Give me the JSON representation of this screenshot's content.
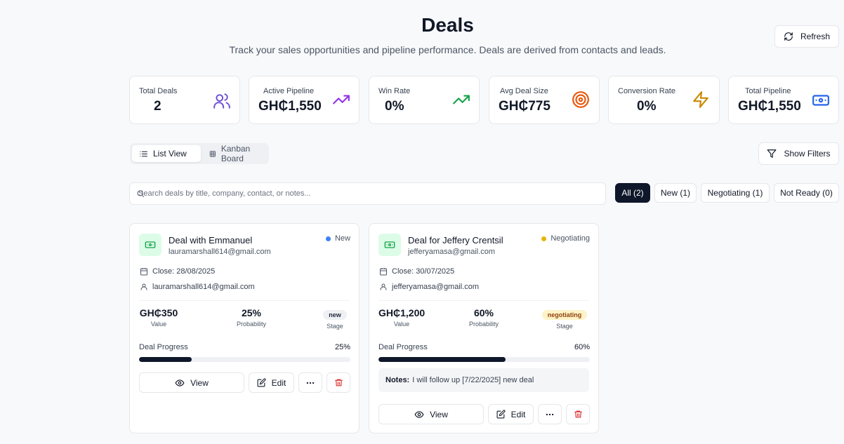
{
  "header": {
    "title": "Deals",
    "subtitle": "Track your sales opportunities and pipeline performance. Deals are derived from contacts and leads.",
    "refresh_label": "Refresh"
  },
  "stats": [
    {
      "label": "Total Deals",
      "value": "2",
      "icon": "users-icon",
      "color": "#6d4ed8"
    },
    {
      "label": "Active Pipeline",
      "value": "GH₵1,550",
      "icon": "trending-up-icon",
      "color": "#9333ea"
    },
    {
      "label": "Win Rate",
      "value": "0%",
      "icon": "trending-up-icon",
      "color": "#16a34a"
    },
    {
      "label": "Avg Deal Size",
      "value": "GH₵775",
      "icon": "target-icon",
      "color": "#ea580c"
    },
    {
      "label": "Conversion Rate",
      "value": "0%",
      "icon": "zap-icon",
      "color": "#ca8a04"
    },
    {
      "label": "Total Pipeline",
      "value": "GH₵1,550",
      "icon": "banknote-icon",
      "color": "#2563eb"
    }
  ],
  "view_toggle": {
    "list_label": "List View",
    "kanban_label": "Kanban Board"
  },
  "filters_label": "Show Filters",
  "search": {
    "placeholder": "Search deals by title, company, contact, or notes...",
    "value": ""
  },
  "stage_filters": [
    {
      "label": "All (2)",
      "active": true
    },
    {
      "label": "New (1)",
      "active": false
    },
    {
      "label": "Negotiating (1)",
      "active": false
    },
    {
      "label": "Not Ready (0)",
      "active": false
    }
  ],
  "deals": [
    {
      "title": "Deal with Emmanuel",
      "email": "lauramarshall614@gmail.com",
      "status": "New",
      "status_color": "#3b82f6",
      "close": "Close: 28/08/2025",
      "contact": "lauramarshall614@gmail.com",
      "value": "GH₵350",
      "value_label": "Value",
      "probability": "25%",
      "probability_label": "Probability",
      "stage": "new",
      "stage_label": "Stage",
      "stage_bg": "#eef0f4",
      "stage_fg": "#1f2937",
      "progress_label": "Deal Progress",
      "progress_pct": "25%",
      "progress": 25,
      "notes_label": "",
      "notes": "",
      "view_label": "View",
      "edit_label": "Edit"
    },
    {
      "title": "Deal for Jeffery Crentsil",
      "email": "jefferyamasa@gmail.com",
      "status": "Negotiating",
      "status_color": "#eab308",
      "close": "Close: 30/07/2025",
      "contact": "jefferyamasa@gmail.com",
      "value": "GH₵1,200",
      "value_label": "Value",
      "probability": "60%",
      "probability_label": "Probability",
      "stage": "negotiating",
      "stage_label": "Stage",
      "stage_bg": "#fef3c7",
      "stage_fg": "#92400e",
      "progress_label": "Deal Progress",
      "progress_pct": "60%",
      "progress": 60,
      "notes_label": "Notes:",
      "notes": "I will follow up [7/22/2025] new deal",
      "view_label": "View",
      "edit_label": "Edit"
    }
  ]
}
